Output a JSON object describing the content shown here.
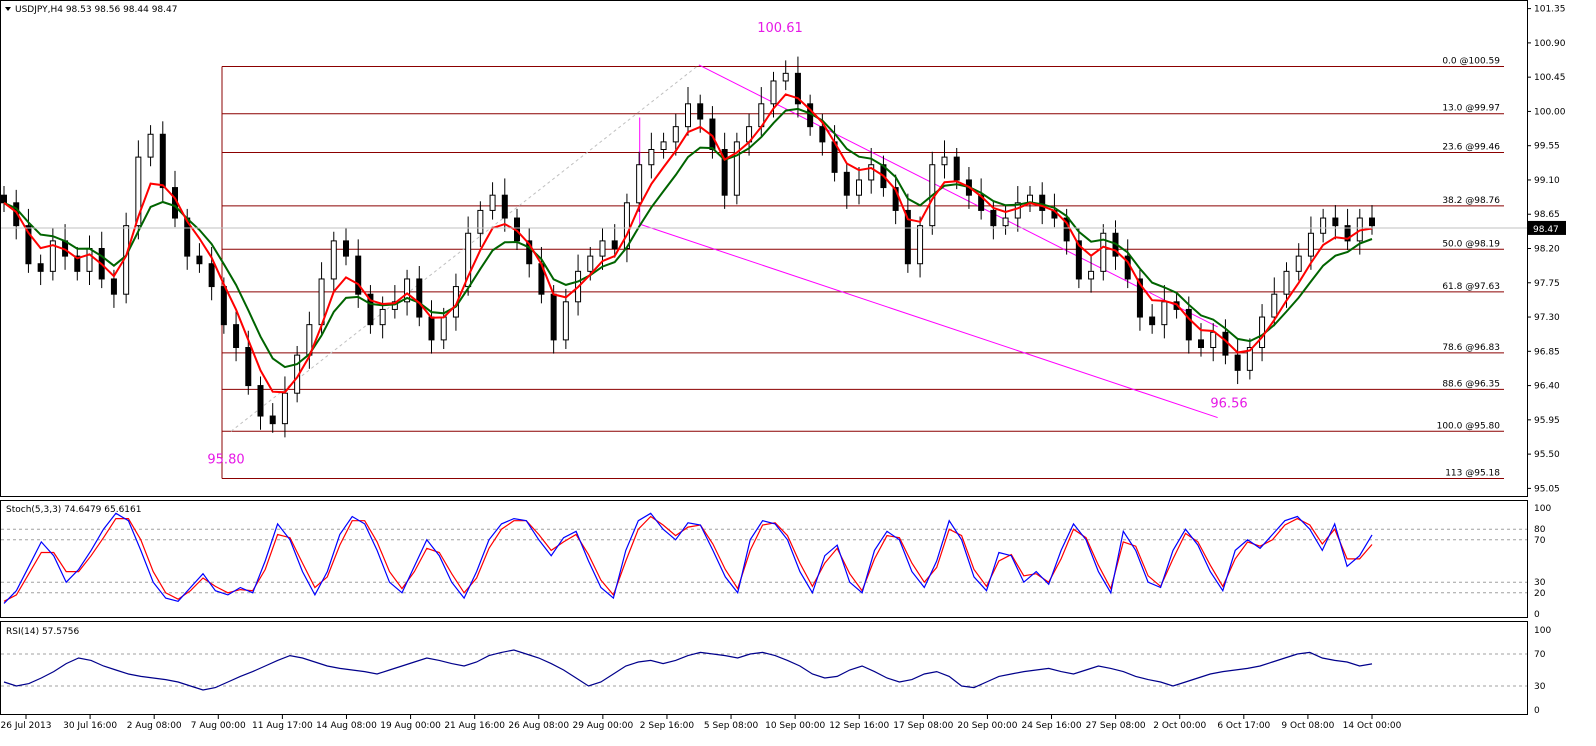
{
  "chart_data": {
    "type": "candlestick",
    "title": "USDJPY,H4  98.53 98.56 98.44 98.47",
    "symbol": "USDJPY",
    "timeframe": "H4",
    "ohlc_header": "98.53 98.56 98.44 98.47",
    "last_price": "98.47",
    "price_axis": {
      "ylim": [
        94.95,
        101.45
      ],
      "ticks": [
        "101.35",
        "100.90",
        "100.45",
        "100.00",
        "99.55",
        "99.10",
        "98.65",
        "98.20",
        "97.75",
        "97.30",
        "96.85",
        "96.40",
        "95.95",
        "95.50",
        "95.05"
      ]
    },
    "time_axis": {
      "ticks": [
        "26 Jul 2013",
        "30 Jul 16:00",
        "2 Aug 08:00",
        "7 Aug 00:00",
        "11 Aug 17:00",
        "14 Aug 08:00",
        "19 Aug 00:00",
        "21 Aug 16:00",
        "26 Aug 08:00",
        "29 Aug 00:00",
        "2 Sep 16:00",
        "5 Sep 08:00",
        "10 Sep 00:00",
        "12 Sep 16:00",
        "17 Sep 08:00",
        "20 Sep 00:00",
        "24 Sep 16:00",
        "27 Sep 08:00",
        "2 Oct 00:00",
        "6 Oct 17:00",
        "9 Oct 08:00",
        "14 Oct 00:00"
      ]
    },
    "fib_levels": [
      {
        "label": "0.0 @100.59",
        "price": 100.59
      },
      {
        "label": "13.0 @99.97",
        "price": 99.97
      },
      {
        "label": "23.6 @99.46",
        "price": 99.46
      },
      {
        "label": "38.2 @98.76",
        "price": 98.76
      },
      {
        "label": "50.0 @98.19",
        "price": 98.19
      },
      {
        "label": "61.8 @97.63",
        "price": 97.63
      },
      {
        "label": "78.6 @96.83",
        "price": 96.83
      },
      {
        "label": "88.6 @96.35",
        "price": 96.35
      },
      {
        "label": "100.0 @95.80",
        "price": 95.8
      },
      {
        "label": "113 @95.18",
        "price": 95.18
      }
    ],
    "annotations": [
      {
        "text": "100.61",
        "price": 100.61
      },
      {
        "text": "95.80",
        "price": 95.8
      },
      {
        "text": "96.56",
        "price": 96.56
      }
    ],
    "anchor_points": [
      {
        "price": 95.8,
        "t": 0.165
      },
      {
        "price": 100.61,
        "t": 0.505
      },
      {
        "price": 96.56,
        "t": 0.805
      }
    ],
    "channel": {
      "upper": [
        {
          "t": 0.505,
          "price": 100.61
        },
        {
          "t": 0.882,
          "price": 97.17
        }
      ],
      "lower": [
        {
          "t": 0.462,
          "price": 98.52
        },
        {
          "t": 0.882,
          "price": 95.98
        }
      ]
    },
    "close_series": [
      98.8,
      98.5,
      98.0,
      97.9,
      98.3,
      98.1,
      97.9,
      98.2,
      97.8,
      97.6,
      98.5,
      99.4,
      99.7,
      99.0,
      98.6,
      98.1,
      98.0,
      97.7,
      97.2,
      96.9,
      96.4,
      96.0,
      95.9,
      96.3,
      96.8,
      97.2,
      97.8,
      98.3,
      98.1,
      97.6,
      97.2,
      97.4,
      97.5,
      97.8,
      97.3,
      97.0,
      97.3,
      97.7,
      98.4,
      98.7,
      98.9,
      98.6,
      98.3,
      98.0,
      97.6,
      97.0,
      97.5,
      97.9,
      98.1,
      98.3,
      98.2,
      98.8,
      99.3,
      99.5,
      99.6,
      99.8,
      100.1,
      99.9,
      99.5,
      98.9,
      99.6,
      99.8,
      100.1,
      100.4,
      100.5,
      100.1,
      99.8,
      99.6,
      99.2,
      98.9,
      99.1,
      99.3,
      99.0,
      98.7,
      98.0,
      98.5,
      99.3,
      99.4,
      99.1,
      98.9,
      98.7,
      98.5,
      98.6,
      98.8,
      98.9,
      98.7,
      98.6,
      98.3,
      97.8,
      97.9,
      98.4,
      98.1,
      97.8,
      97.3,
      97.2,
      97.5,
      97.4,
      97.0,
      96.9,
      97.1,
      96.8,
      96.6,
      96.9,
      97.3,
      97.6,
      97.9,
      98.1,
      98.4,
      98.6,
      98.5,
      98.3,
      98.6,
      98.5
    ],
    "moving_averages": [
      {
        "name": "red MA",
        "color": "#ff0000"
      },
      {
        "name": "green MA",
        "color": "#006400"
      }
    ],
    "stochastic": {
      "title": "Stoch(5,3,3) 74.6479 65.6161",
      "ylim": [
        0,
        100
      ],
      "ticks": [
        "100",
        "80",
        "70",
        "30",
        "20",
        "0"
      ],
      "levels": [
        80,
        70,
        30,
        20
      ],
      "main_color": "#0000ff",
      "signal_color": "#ff0000",
      "main": [
        10,
        22,
        45,
        68,
        55,
        30,
        42,
        60,
        80,
        95,
        88,
        60,
        30,
        15,
        12,
        25,
        38,
        22,
        18,
        25,
        20,
        50,
        85,
        70,
        40,
        18,
        40,
        75,
        92,
        85,
        60,
        30,
        20,
        45,
        70,
        55,
        30,
        15,
        40,
        70,
        85,
        90,
        88,
        70,
        55,
        72,
        78,
        50,
        25,
        15,
        60,
        88,
        95,
        80,
        70,
        86,
        84,
        60,
        35,
        20,
        70,
        88,
        85,
        70,
        40,
        20,
        55,
        65,
        30,
        20,
        60,
        78,
        70,
        40,
        25,
        50,
        88,
        70,
        35,
        22,
        58,
        55,
        30,
        40,
        28,
        60,
        85,
        70,
        40,
        20,
        78,
        60,
        30,
        25,
        60,
        80,
        65,
        40,
        22,
        60,
        70,
        62,
        75,
        88,
        92,
        80,
        60,
        85,
        45,
        55,
        74.6
      ],
      "signal": [
        12,
        18,
        38,
        58,
        58,
        40,
        40,
        55,
        72,
        90,
        90,
        70,
        40,
        20,
        14,
        22,
        34,
        26,
        20,
        23,
        22,
        42,
        75,
        72,
        48,
        25,
        35,
        65,
        88,
        88,
        68,
        40,
        24,
        40,
        62,
        58,
        38,
        20,
        34,
        62,
        80,
        88,
        88,
        75,
        60,
        68,
        75,
        56,
        32,
        18,
        50,
        80,
        92,
        84,
        74,
        82,
        84,
        66,
        42,
        24,
        60,
        84,
        86,
        74,
        48,
        26,
        48,
        62,
        38,
        22,
        52,
        74,
        72,
        48,
        30,
        44,
        80,
        74,
        42,
        26,
        50,
        56,
        36,
        38,
        30,
        52,
        80,
        72,
        46,
        24,
        68,
        64,
        36,
        26,
        52,
        76,
        68,
        46,
        26,
        52,
        68,
        64,
        70,
        84,
        90,
        84,
        66,
        80,
        52,
        52,
        65.6
      ]
    },
    "rsi": {
      "title": "RSI(14) 57.5756",
      "ylim": [
        0,
        100
      ],
      "ticks": [
        "100",
        "70",
        "30",
        "0"
      ],
      "levels": [
        70,
        30
      ],
      "color": "#00008b",
      "values": [
        35,
        30,
        33,
        40,
        48,
        58,
        65,
        62,
        55,
        50,
        45,
        42,
        40,
        38,
        35,
        30,
        25,
        28,
        35,
        42,
        48,
        55,
        62,
        68,
        65,
        60,
        55,
        52,
        50,
        48,
        45,
        50,
        55,
        60,
        65,
        62,
        58,
        55,
        60,
        68,
        72,
        75,
        70,
        65,
        58,
        50,
        40,
        30,
        35,
        45,
        55,
        60,
        62,
        58,
        62,
        68,
        72,
        70,
        68,
        65,
        70,
        72,
        68,
        62,
        55,
        45,
        40,
        42,
        50,
        55,
        48,
        40,
        35,
        38,
        45,
        48,
        42,
        30,
        28,
        35,
        42,
        45,
        48,
        50,
        52,
        48,
        45,
        50,
        55,
        52,
        48,
        42,
        38,
        35,
        30,
        35,
        40,
        45,
        48,
        50,
        52,
        55,
        60,
        65,
        70,
        72,
        65,
        62,
        60,
        55,
        57.6
      ]
    }
  }
}
